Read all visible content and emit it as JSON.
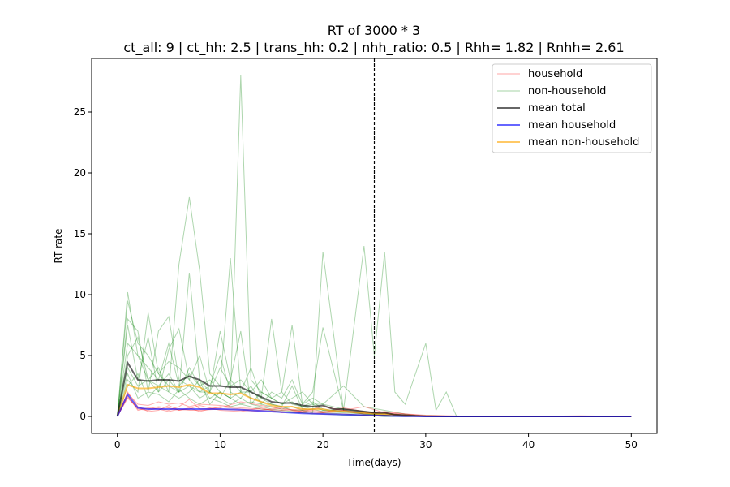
{
  "chart_data": {
    "type": "line",
    "title": "RT of 3000 * 3",
    "subtitle": "ct_all: 9 | ct_hh: 2.5 | trans_hh: 0.2 | nhh_ratio: 0.5 | Rhh= 1.82 | Rnhh= 2.61",
    "xlabel": "Time(days)",
    "ylabel": "RT rate",
    "xlim": [
      -2.5,
      52.5
    ],
    "ylim": [
      -1.4,
      29.4
    ],
    "xticks": [
      0,
      10,
      20,
      30,
      40,
      50
    ],
    "yticks": [
      0,
      5,
      10,
      15,
      20,
      25
    ],
    "grid": false,
    "legend_position": "top-right",
    "vline_x": 25,
    "colors": {
      "household": "#ff0000",
      "non_household": "#008000",
      "mean_total": "#000000",
      "mean_household": "#0000ff",
      "mean_non_household": "#ffa500"
    },
    "legend": [
      {
        "key": "household",
        "label": "household"
      },
      {
        "key": "non_household",
        "label": "non-household"
      },
      {
        "key": "mean_total",
        "label": "mean total"
      },
      {
        "key": "mean_household",
        "label": "mean household"
      },
      {
        "key": "mean_non_household",
        "label": "mean non-household"
      }
    ],
    "mean_total": {
      "x": [
        0,
        1,
        2,
        3,
        4,
        5,
        6,
        7,
        8,
        9,
        10,
        11,
        12,
        13,
        14,
        15,
        16,
        17,
        18,
        19,
        20,
        21,
        22,
        23,
        24,
        25,
        26,
        27,
        28,
        29,
        30,
        32,
        35,
        40,
        45,
        50
      ],
      "y": [
        0,
        4.4,
        3.0,
        2.9,
        3.0,
        3.0,
        2.9,
        3.3,
        3.0,
        2.5,
        2.5,
        2.4,
        2.4,
        2.0,
        1.6,
        1.2,
        1.1,
        1.1,
        0.9,
        0.8,
        0.9,
        0.6,
        0.6,
        0.5,
        0.4,
        0.3,
        0.3,
        0.15,
        0.1,
        0.05,
        0.02,
        0,
        0,
        0,
        0,
        0
      ]
    },
    "mean_household": {
      "x": [
        0,
        1,
        2,
        3,
        4,
        5,
        6,
        7,
        8,
        9,
        10,
        12,
        14,
        16,
        18,
        20,
        22,
        24,
        26,
        28,
        30,
        35,
        40,
        45,
        50
      ],
      "y": [
        0,
        1.8,
        0.7,
        0.6,
        0.6,
        0.6,
        0.6,
        0.6,
        0.6,
        0.6,
        0.6,
        0.55,
        0.45,
        0.35,
        0.25,
        0.2,
        0.15,
        0.1,
        0.05,
        0.02,
        0,
        0,
        0,
        0,
        0
      ]
    },
    "mean_non_household": {
      "x": [
        0,
        1,
        2,
        3,
        4,
        5,
        6,
        7,
        8,
        9,
        10,
        11,
        12,
        13,
        14,
        15,
        16,
        17,
        18,
        19,
        20,
        21,
        22,
        23,
        24,
        25,
        26,
        27,
        28,
        29,
        30,
        32,
        35,
        40,
        45,
        50
      ],
      "y": [
        0,
        2.6,
        2.3,
        2.3,
        2.4,
        2.5,
        2.4,
        2.6,
        2.4,
        1.9,
        1.9,
        1.8,
        1.9,
        1.5,
        1.2,
        0.9,
        0.8,
        0.8,
        0.6,
        0.6,
        0.6,
        0.45,
        0.4,
        0.35,
        0.3,
        0.2,
        0.2,
        0.12,
        0.08,
        0.04,
        0.02,
        0,
        0,
        0,
        0,
        0
      ]
    },
    "household_runs": [
      {
        "x": [
          0,
          1,
          2,
          3,
          4,
          5,
          6,
          7,
          8,
          10,
          12,
          14,
          16,
          18,
          20,
          22,
          24,
          26,
          28,
          30,
          35,
          40,
          45,
          50
        ],
        "y": [
          0,
          1.9,
          1.0,
          0.9,
          1.2,
          1.0,
          1.1,
          0.8,
          1.0,
          0.9,
          0.7,
          0.6,
          0.5,
          0.6,
          0.4,
          0.5,
          0.8,
          0.3,
          0.1,
          0,
          0,
          0,
          0.05,
          0
        ]
      },
      {
        "x": [
          0,
          1,
          2,
          3,
          4,
          5,
          6,
          7,
          8,
          10,
          12,
          14,
          16,
          18,
          20,
          22,
          24,
          26,
          28,
          30,
          35,
          40,
          45,
          50
        ],
        "y": [
          0,
          1.6,
          0.6,
          0.5,
          0.7,
          0.5,
          0.8,
          1.4,
          0.6,
          0.7,
          1.2,
          0.9,
          0.6,
          0.4,
          0.8,
          0.5,
          0.3,
          0.2,
          0.1,
          0,
          0,
          0,
          0,
          0
        ]
      },
      {
        "x": [
          0,
          1,
          2,
          3,
          4,
          5,
          6,
          7,
          8,
          10,
          12,
          14,
          16,
          18,
          20,
          22,
          24,
          26,
          28,
          30,
          35,
          40,
          45,
          50
        ],
        "y": [
          0,
          2.0,
          0.8,
          0.4,
          0.5,
          0.9,
          0.5,
          0.6,
          0.9,
          0.5,
          0.4,
          0.7,
          0.3,
          0.5,
          0.3,
          0.7,
          0.4,
          0.3,
          0.2,
          0.05,
          0,
          0,
          0,
          0
        ]
      },
      {
        "x": [
          0,
          1,
          2,
          3,
          4,
          5,
          6,
          7,
          8,
          10,
          12,
          14,
          16,
          18,
          20,
          22,
          24,
          26,
          28,
          30,
          35,
          40,
          45,
          50
        ],
        "y": [
          0,
          1.7,
          0.5,
          0.7,
          0.6,
          0.4,
          0.6,
          0.5,
          0.5,
          0.6,
          0.5,
          0.4,
          0.4,
          0.3,
          0.2,
          0.2,
          0.1,
          0.1,
          0,
          0,
          0,
          0,
          0,
          0
        ]
      },
      {
        "x": [
          0,
          1,
          2,
          3,
          4,
          5,
          6,
          7,
          8,
          10,
          12,
          14,
          16,
          18,
          20,
          22,
          24,
          26,
          28,
          30,
          35,
          40,
          45,
          50
        ],
        "y": [
          0,
          1.5,
          0.7,
          0.6,
          0.8,
          0.7,
          0.5,
          0.7,
          0.4,
          0.8,
          0.6,
          0.5,
          0.7,
          0.4,
          0.3,
          0.4,
          0.2,
          0.4,
          0.2,
          0.1,
          0,
          0,
          0,
          0
        ]
      }
    ],
    "non_household_runs": [
      {
        "x": [
          0,
          1,
          2,
          3,
          4,
          5,
          6,
          7,
          8,
          9,
          10,
          11,
          12,
          13,
          14,
          15,
          16,
          17,
          18,
          19,
          20,
          22,
          24,
          26,
          28,
          30,
          35,
          40,
          45,
          50
        ],
        "y": [
          0,
          10.2,
          5.0,
          3.0,
          2.5,
          3.5,
          2.0,
          4.0,
          2.5,
          3.0,
          2.0,
          1.5,
          28.0,
          3.0,
          2.0,
          1.5,
          1.0,
          1.2,
          0.8,
          1.0,
          0.5,
          0.5,
          0.3,
          0.2,
          0.1,
          0,
          0,
          0,
          0,
          0
        ]
      },
      {
        "x": [
          0,
          1,
          2,
          3,
          4,
          5,
          6,
          7,
          8,
          9,
          10,
          11,
          12,
          13,
          14,
          15,
          16,
          17,
          18,
          19,
          20,
          22,
          24,
          26,
          28,
          30,
          35,
          40,
          45,
          50
        ],
        "y": [
          0,
          5.0,
          6.5,
          3.0,
          4.0,
          2.0,
          12.5,
          18.0,
          12.0,
          3.5,
          2.5,
          13.0,
          2.0,
          2.0,
          1.5,
          1.0,
          0.8,
          0.5,
          0.5,
          0.3,
          13.5,
          0.5,
          0.2,
          0.1,
          0,
          0,
          0,
          0,
          0,
          0
        ]
      },
      {
        "x": [
          0,
          1,
          2,
          3,
          4,
          5,
          6,
          7,
          8,
          9,
          10,
          11,
          12,
          13,
          14,
          15,
          16,
          17,
          18,
          19,
          20,
          22,
          24,
          25,
          26,
          27,
          28,
          30,
          31,
          32,
          33,
          35,
          40,
          45,
          50
        ],
        "y": [
          0,
          3.0,
          2.0,
          8.5,
          3.5,
          2.5,
          2.0,
          11.8,
          3.0,
          2.0,
          7.0,
          3.0,
          2.0,
          4.0,
          1.5,
          8.0,
          2.0,
          7.5,
          1.0,
          2.0,
          7.3,
          0.5,
          14.0,
          5.0,
          13.5,
          2.0,
          1.0,
          6.0,
          0.5,
          2.0,
          0,
          0,
          0,
          0,
          0
        ]
      },
      {
        "x": [
          0,
          1,
          2,
          3,
          4,
          5,
          6,
          7,
          8,
          9,
          10,
          11,
          12,
          13,
          14,
          15,
          16,
          17,
          18,
          19,
          20,
          22,
          24,
          26,
          28,
          30,
          35,
          40,
          45,
          50
        ],
        "y": [
          0,
          8.0,
          7.0,
          2.0,
          7.0,
          8.2,
          3.0,
          2.5,
          2.0,
          2.5,
          5.0,
          2.0,
          1.5,
          2.5,
          1.0,
          2.0,
          1.5,
          3.0,
          1.0,
          1.5,
          1.0,
          2.5,
          0.8,
          0.5,
          0.2,
          0,
          0,
          0,
          0,
          0
        ]
      },
      {
        "x": [
          0,
          1,
          2,
          3,
          4,
          5,
          6,
          7,
          8,
          9,
          10,
          11,
          12,
          13,
          14,
          15,
          16,
          17,
          18,
          19,
          20,
          22,
          24,
          26,
          28,
          30,
          35,
          40,
          45,
          50
        ],
        "y": [
          0,
          7.5,
          3.0,
          6.5,
          2.0,
          5.5,
          7.2,
          3.0,
          2.0,
          2.0,
          1.5,
          3.0,
          7.0,
          1.0,
          2.0,
          1.5,
          2.0,
          1.0,
          0.8,
          1.2,
          0.6,
          0.4,
          0.3,
          0.1,
          0,
          0,
          0,
          0,
          0,
          0
        ]
      },
      {
        "x": [
          0,
          1,
          2,
          3,
          4,
          5,
          6,
          7,
          8,
          9,
          10,
          11,
          12,
          13,
          14,
          15,
          16,
          17,
          18,
          19,
          20,
          22,
          24,
          26,
          28,
          30,
          35,
          40,
          45,
          50
        ],
        "y": [
          0,
          6.0,
          5.0,
          4.0,
          3.0,
          6.0,
          2.5,
          3.5,
          2.5,
          1.5,
          2.0,
          1.5,
          2.0,
          1.5,
          1.2,
          1.0,
          0.8,
          2.5,
          0.6,
          0.8,
          0.5,
          0.4,
          0.2,
          0.1,
          0,
          0,
          0,
          0,
          0,
          0
        ]
      },
      {
        "x": [
          0,
          1,
          2,
          3,
          4,
          5,
          6,
          7,
          8,
          9,
          10,
          11,
          12,
          13,
          14,
          15,
          16,
          17,
          18,
          19,
          20,
          22,
          24,
          26,
          28,
          30,
          35,
          40,
          45,
          50
        ],
        "y": [
          0,
          4.0,
          2.5,
          3.0,
          2.0,
          3.0,
          2.0,
          2.5,
          1.5,
          2.0,
          1.5,
          1.0,
          1.5,
          1.0,
          0.8,
          0.6,
          0.5,
          0.4,
          0.3,
          0.4,
          0.3,
          0.2,
          0.1,
          0,
          0,
          0,
          0,
          0,
          0,
          0
        ]
      },
      {
        "x": [
          0,
          1,
          2,
          3,
          4,
          5,
          6,
          7,
          8,
          9,
          10,
          11,
          12,
          13,
          14,
          15,
          16,
          17,
          18,
          19,
          20,
          22,
          24,
          26,
          28,
          30,
          35,
          40,
          45,
          50
        ],
        "y": [
          0,
          3.5,
          1.5,
          2.0,
          1.8,
          1.2,
          2.2,
          1.5,
          1.0,
          1.5,
          1.2,
          0.8,
          1.0,
          0.8,
          0.6,
          0.5,
          0.4,
          0.3,
          0.3,
          0.2,
          0.2,
          0.1,
          0.1,
          0,
          0,
          0,
          0,
          0,
          0,
          0
        ]
      },
      {
        "x": [
          0,
          1,
          2,
          3,
          4,
          5,
          6,
          7,
          8,
          9,
          10,
          11,
          12,
          13,
          14,
          15,
          16,
          17,
          18,
          19,
          20,
          22,
          24,
          26,
          28,
          30,
          35,
          40,
          45,
          50
        ],
        "y": [
          0,
          9.5,
          6.0,
          5.0,
          3.5,
          4.5,
          4.0,
          3.0,
          5.0,
          2.0,
          4.0,
          2.5,
          3.0,
          2.0,
          3.0,
          1.5,
          1.0,
          1.5,
          2.0,
          1.0,
          1.0,
          0.6,
          0.4,
          0.2,
          0.1,
          0,
          0,
          0,
          0,
          0
        ]
      },
      {
        "x": [
          0,
          1,
          2,
          3,
          4,
          5,
          6,
          7,
          8,
          9,
          10,
          11,
          12,
          13,
          14,
          15,
          16,
          17,
          18,
          19,
          20,
          22,
          24,
          26,
          28,
          30,
          35,
          40,
          45,
          50
        ],
        "y": [
          0,
          2.5,
          3.5,
          1.5,
          2.5,
          2.0,
          1.5,
          2.0,
          3.0,
          1.0,
          2.0,
          1.5,
          1.0,
          1.2,
          1.0,
          0.8,
          0.6,
          0.8,
          0.5,
          0.6,
          0.4,
          0.3,
          0.2,
          0.1,
          0,
          0,
          0,
          0,
          0,
          0
        ]
      }
    ]
  }
}
